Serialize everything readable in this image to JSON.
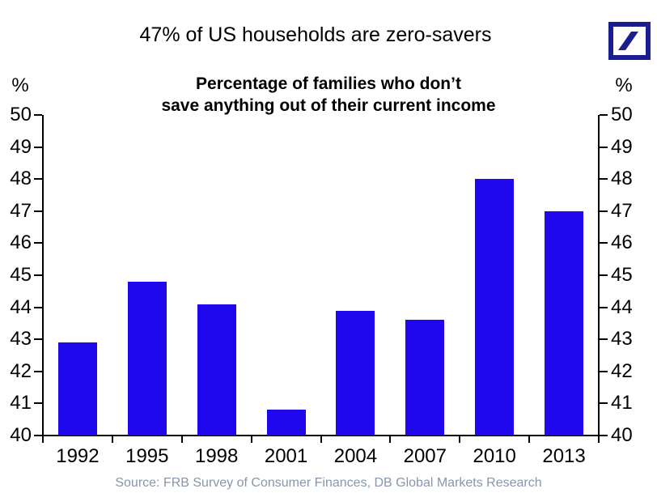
{
  "header": {
    "title": "47% of US households are zero-savers",
    "subtitle_lines": [
      "Percentage of families who don’t",
      "save anything out of their current income"
    ]
  },
  "axes": {
    "left_unit": "%",
    "right_unit": "%"
  },
  "footer": {
    "source": "Source: FRB Survey of Consumer Finances, DB Global Markets Research"
  },
  "logo": {
    "name": "Deutsche Bank",
    "color": "#1d1d92"
  },
  "chart_data": {
    "type": "bar",
    "title": "47% of US households are zero-savers",
    "subtitle": "Percentage of families who don’t save anything out of their current income",
    "categories": [
      "1992",
      "1995",
      "1998",
      "2001",
      "2004",
      "2007",
      "2010",
      "2013"
    ],
    "values": [
      42.9,
      44.8,
      44.1,
      40.8,
      43.9,
      43.6,
      48.0,
      47.0
    ],
    "ylabel_left": "%",
    "ylabel_right": "%",
    "ylim": [
      40,
      50
    ],
    "yticks": [
      40,
      41,
      42,
      43,
      44,
      45,
      46,
      47,
      48,
      49,
      50
    ],
    "grid": false,
    "legend": "none",
    "bar_color": "#2008ec",
    "axis_color": "#000000",
    "source": "Source: FRB Survey of Consumer Finances, DB Global Markets Research",
    "source_color": "#8696ab"
  }
}
